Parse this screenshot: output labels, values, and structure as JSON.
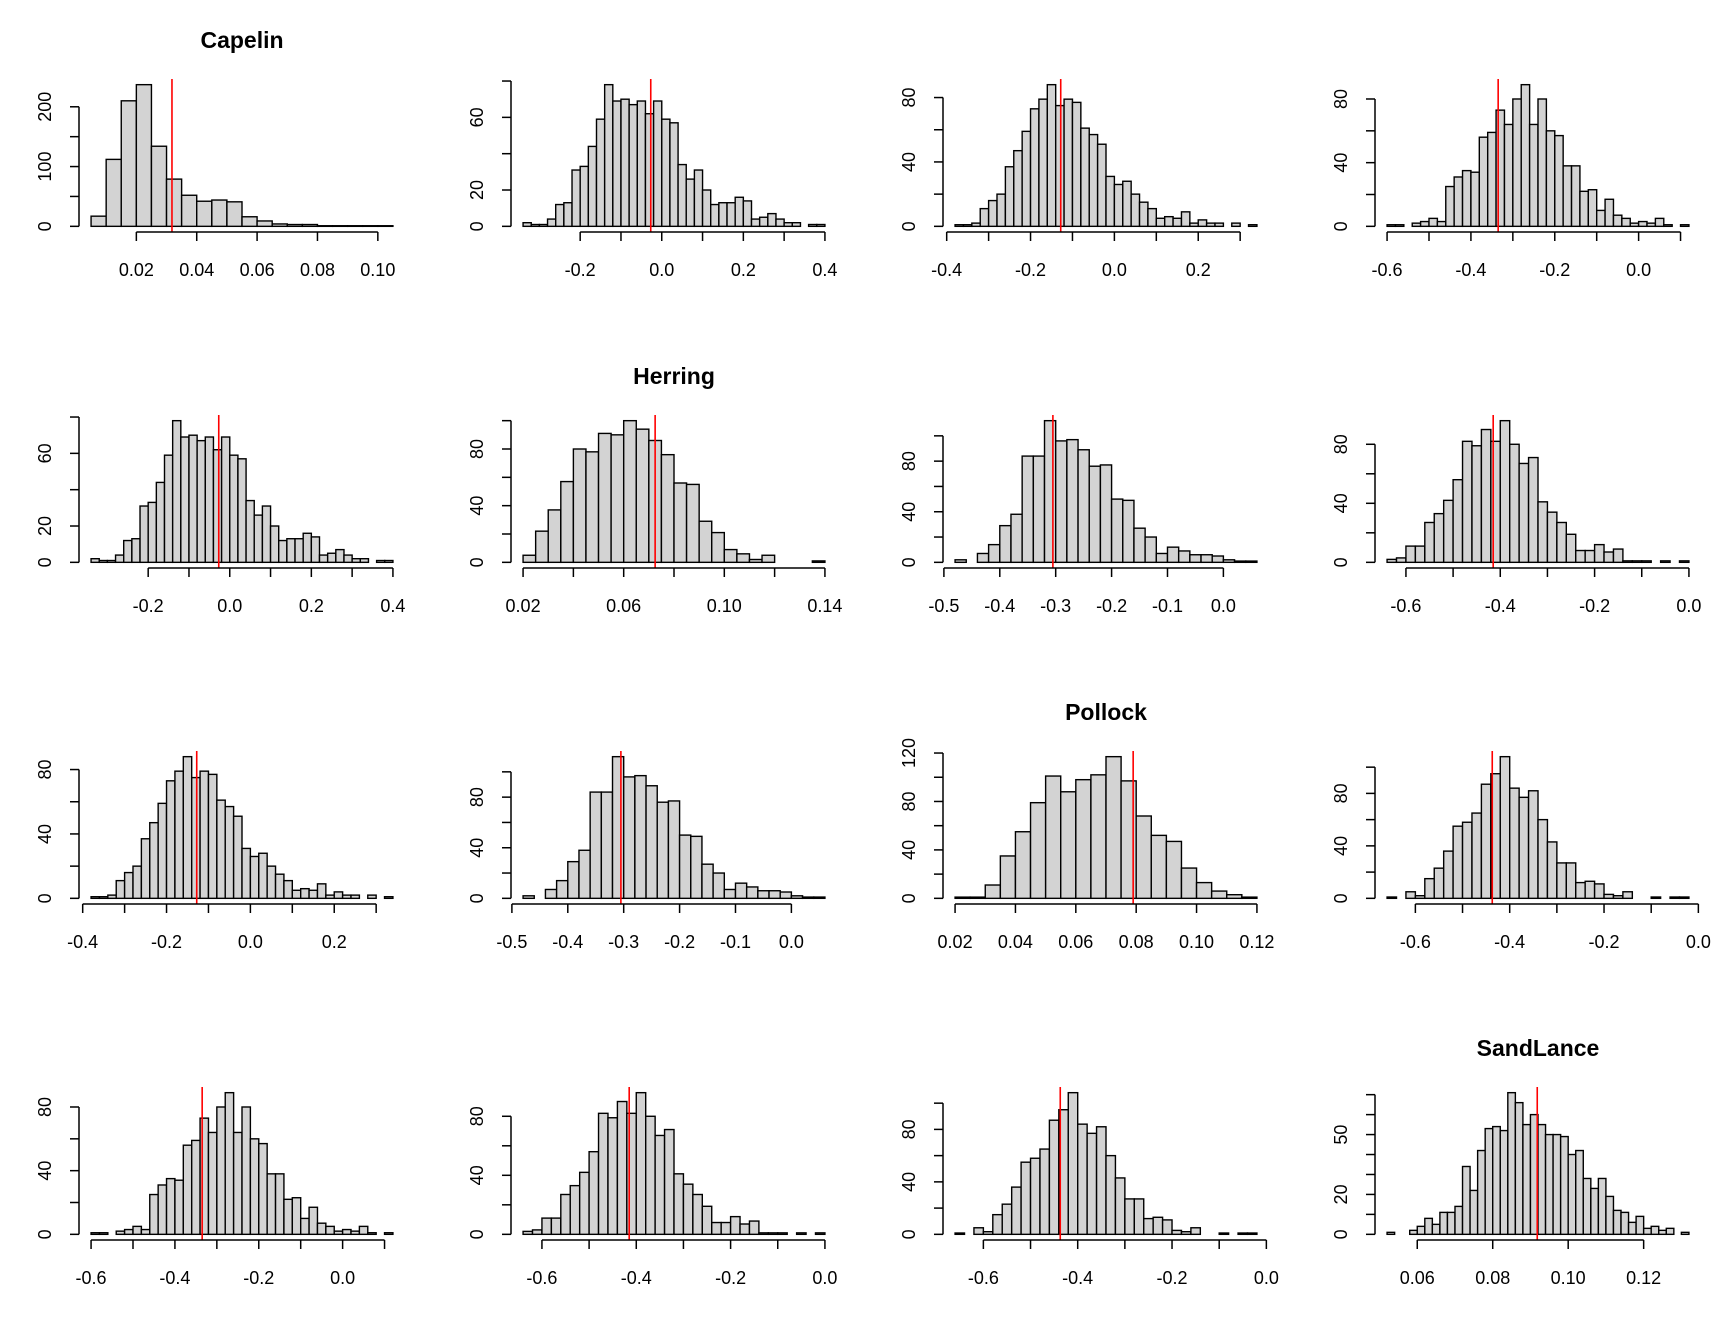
{
  "chart_data": {
    "type": "histogram-grid",
    "bar_fill": "#d3d3d3",
    "ref_line_color": "#ff0000",
    "panels": [
      {
        "title": "Capelin",
        "bins_start": 0.005,
        "bin_width": 0.005,
        "counts": [
          17,
          112,
          210,
          237,
          134,
          79,
          52,
          42,
          44,
          41,
          16,
          9,
          4,
          3,
          3,
          1,
          1,
          1,
          1,
          1
        ],
        "ref_line": 0.0318,
        "x_ticks": [
          0.02,
          0.04,
          0.06,
          0.08,
          0.1
        ],
        "x_labels": [
          "0.02",
          "0.04",
          "0.06",
          "0.08",
          "0.10"
        ],
        "y_ticks": [
          0,
          50,
          100,
          150,
          200
        ],
        "y_labels": [
          "0",
          "",
          "100",
          "",
          "200"
        ]
      },
      {
        "title": "",
        "bins_start": -0.34,
        "bin_width": 0.02,
        "counts": [
          2,
          1,
          1,
          4,
          12,
          13,
          31,
          33,
          44,
          59,
          78,
          69,
          70,
          67,
          69,
          62,
          69,
          59,
          57,
          34,
          26,
          31,
          20,
          12,
          13,
          13,
          16,
          14,
          4,
          5,
          7,
          4,
          2,
          2,
          0,
          1,
          1
        ],
        "ref_line": -0.027,
        "x_ticks": [
          -0.2,
          -0.1,
          0.0,
          0.1,
          0.2,
          0.3,
          0.4
        ],
        "x_labels": [
          "-0.2",
          "",
          "0.0",
          "",
          "0.2",
          "",
          "0.4"
        ],
        "y_ticks": [
          0,
          20,
          40,
          60,
          80
        ],
        "y_labels": [
          "0",
          "20",
          "",
          "60",
          ""
        ]
      },
      {
        "title": "",
        "bins_start": -0.38,
        "bin_width": 0.02,
        "counts": [
          1,
          1,
          2,
          11,
          16,
          20,
          37,
          47,
          59,
          73,
          79,
          88,
          75,
          79,
          77,
          61,
          57,
          51,
          31,
          26,
          28,
          20,
          15,
          11,
          5,
          6,
          5,
          9,
          2,
          4,
          2,
          2,
          0,
          2,
          0,
          1
        ],
        "ref_line": -0.128,
        "x_ticks": [
          -0.4,
          -0.3,
          -0.2,
          -0.1,
          0.0,
          0.1,
          0.2,
          0.3
        ],
        "x_labels": [
          "-0.4",
          "",
          "-0.2",
          "",
          "0.0",
          "",
          "0.2",
          ""
        ],
        "y_ticks": [
          0,
          20,
          40,
          60,
          80
        ],
        "y_labels": [
          "0",
          "",
          "40",
          "",
          "80"
        ]
      },
      {
        "title": "",
        "bins_start": -0.6,
        "bin_width": 0.02,
        "counts": [
          1,
          1,
          0,
          2,
          3,
          5,
          3,
          25,
          31,
          35,
          34,
          56,
          59,
          73,
          64,
          80,
          89,
          64,
          80,
          60,
          57,
          38,
          38,
          22,
          23,
          10,
          17,
          7,
          5,
          2,
          3,
          2,
          5,
          1,
          0,
          1
        ],
        "ref_line": -0.335,
        "x_ticks": [
          -0.6,
          -0.5,
          -0.4,
          -0.3,
          -0.2,
          -0.1,
          0.0,
          0.1
        ],
        "x_labels": [
          "-0.6",
          "",
          "-0.4",
          "",
          "-0.2",
          "",
          "0.0",
          ""
        ],
        "y_ticks": [
          0,
          20,
          40,
          60,
          80
        ],
        "y_labels": [
          "0",
          "",
          "40",
          "",
          "80"
        ]
      },
      {
        "title": "",
        "bins_start": -0.34,
        "bin_width": 0.02,
        "counts": [
          2,
          1,
          1,
          4,
          12,
          13,
          31,
          33,
          44,
          59,
          78,
          69,
          70,
          67,
          69,
          62,
          69,
          59,
          57,
          34,
          26,
          31,
          20,
          12,
          13,
          13,
          16,
          14,
          4,
          5,
          7,
          4,
          2,
          2,
          0,
          1,
          1
        ],
        "ref_line": -0.027,
        "x_ticks": [
          -0.2,
          -0.1,
          0.0,
          0.1,
          0.2,
          0.3,
          0.4
        ],
        "x_labels": [
          "-0.2",
          "",
          "0.0",
          "",
          "0.2",
          "",
          "0.4"
        ],
        "y_ticks": [
          0,
          20,
          40,
          60,
          80
        ],
        "y_labels": [
          "0",
          "20",
          "",
          "60",
          ""
        ]
      },
      {
        "title": "Herring",
        "bins_start": 0.02,
        "bin_width": 0.005,
        "counts": [
          5,
          22,
          37,
          57,
          80,
          78,
          91,
          90,
          100,
          94,
          86,
          76,
          56,
          55,
          29,
          21,
          9,
          6,
          2,
          5,
          0,
          0,
          0,
          1
        ],
        "ref_line": 0.0725,
        "x_ticks": [
          0.02,
          0.04,
          0.06,
          0.08,
          0.1,
          0.12,
          0.14
        ],
        "x_labels": [
          "0.02",
          "",
          "0.06",
          "",
          "0.10",
          "",
          "0.14"
        ],
        "y_ticks": [
          0,
          20,
          40,
          60,
          80,
          100
        ],
        "y_labels": [
          "0",
          "",
          "40",
          "",
          "80",
          ""
        ]
      },
      {
        "title": "",
        "bins_start": -0.48,
        "bin_width": 0.02,
        "counts": [
          2,
          0,
          7,
          14,
          29,
          38,
          84,
          84,
          112,
          96,
          97,
          89,
          76,
          77,
          50,
          49,
          27,
          20,
          7,
          12,
          9,
          6,
          6,
          5,
          2,
          1,
          1
        ],
        "ref_line": -0.305,
        "x_ticks": [
          -0.5,
          -0.4,
          -0.3,
          -0.2,
          -0.1,
          0.0
        ],
        "x_labels": [
          "-0.5",
          "-0.4",
          "-0.3",
          "-0.2",
          "-0.1",
          "0.0"
        ],
        "y_ticks": [
          0,
          20,
          40,
          60,
          80,
          100
        ],
        "y_labels": [
          "0",
          "",
          "40",
          "",
          "80",
          ""
        ]
      },
      {
        "title": "",
        "bins_start": -0.64,
        "bin_width": 0.02,
        "counts": [
          2,
          3,
          11,
          11,
          27,
          33,
          42,
          56,
          82,
          79,
          90,
          82,
          96,
          80,
          67,
          71,
          41,
          34,
          27,
          19,
          8,
          8,
          12,
          7,
          9,
          1,
          1,
          1,
          0,
          1,
          0,
          1
        ],
        "ref_line": -0.415,
        "x_ticks": [
          -0.6,
          -0.5,
          -0.4,
          -0.3,
          -0.2,
          -0.1,
          0.0
        ],
        "x_labels": [
          "-0.6",
          "",
          "-0.4",
          "",
          "-0.2",
          "",
          "0.0"
        ],
        "y_ticks": [
          0,
          20,
          40,
          60,
          80
        ],
        "y_labels": [
          "0",
          "",
          "40",
          "",
          "80"
        ]
      },
      {
        "title": "",
        "bins_start": -0.38,
        "bin_width": 0.02,
        "counts": [
          1,
          1,
          2,
          11,
          16,
          20,
          37,
          47,
          59,
          73,
          79,
          88,
          75,
          79,
          77,
          61,
          57,
          51,
          31,
          26,
          28,
          20,
          15,
          11,
          5,
          6,
          5,
          9,
          2,
          4,
          2,
          2,
          0,
          2,
          0,
          1
        ],
        "ref_line": -0.128,
        "x_ticks": [
          -0.4,
          -0.3,
          -0.2,
          -0.1,
          0.0,
          0.1,
          0.2,
          0.3
        ],
        "x_labels": [
          "-0.4",
          "",
          "-0.2",
          "",
          "0.0",
          "",
          "0.2",
          ""
        ],
        "y_ticks": [
          0,
          20,
          40,
          60,
          80
        ],
        "y_labels": [
          "0",
          "",
          "40",
          "",
          "80"
        ]
      },
      {
        "title": "",
        "bins_start": -0.48,
        "bin_width": 0.02,
        "counts": [
          2,
          0,
          7,
          14,
          29,
          38,
          84,
          84,
          112,
          96,
          97,
          89,
          76,
          77,
          50,
          49,
          27,
          20,
          7,
          12,
          9,
          6,
          6,
          5,
          2,
          1,
          1
        ],
        "ref_line": -0.305,
        "x_ticks": [
          -0.5,
          -0.4,
          -0.3,
          -0.2,
          -0.1,
          0.0
        ],
        "x_labels": [
          "-0.5",
          "-0.4",
          "-0.3",
          "-0.2",
          "-0.1",
          "0.0"
        ],
        "y_ticks": [
          0,
          20,
          40,
          60,
          80,
          100
        ],
        "y_labels": [
          "0",
          "",
          "40",
          "",
          "80",
          ""
        ]
      },
      {
        "title": "Pollock",
        "bins_start": 0.02,
        "bin_width": 0.005,
        "counts": [
          1,
          1,
          11,
          35,
          55,
          79,
          101,
          88,
          98,
          102,
          117,
          97,
          68,
          52,
          47,
          25,
          13,
          6,
          3,
          1
        ],
        "ref_line": 0.079,
        "x_ticks": [
          0.02,
          0.04,
          0.06,
          0.08,
          0.1,
          0.12
        ],
        "x_labels": [
          "0.02",
          "0.04",
          "0.06",
          "0.08",
          "0.10",
          "0.12"
        ],
        "y_ticks": [
          0,
          20,
          40,
          60,
          80,
          100,
          120
        ],
        "y_labels": [
          "0",
          "",
          "40",
          "",
          "80",
          "",
          "120"
        ]
      },
      {
        "title": "",
        "bins_start": -0.66,
        "bin_width": 0.02,
        "counts": [
          1,
          0,
          5,
          2,
          15,
          23,
          36,
          55,
          58,
          65,
          87,
          95,
          108,
          84,
          77,
          82,
          60,
          43,
          27,
          27,
          12,
          13,
          11,
          3,
          2,
          5,
          0,
          0,
          1,
          0,
          1,
          1
        ],
        "ref_line": -0.437,
        "x_ticks": [
          -0.6,
          -0.5,
          -0.4,
          -0.3,
          -0.2,
          -0.1,
          0.0
        ],
        "x_labels": [
          "-0.6",
          "",
          "-0.4",
          "",
          "-0.2",
          "",
          "0.0"
        ],
        "y_ticks": [
          0,
          20,
          40,
          60,
          80,
          100
        ],
        "y_labels": [
          "0",
          "",
          "40",
          "",
          "80",
          ""
        ]
      },
      {
        "title": "",
        "bins_start": -0.6,
        "bin_width": 0.02,
        "counts": [
          1,
          1,
          0,
          2,
          3,
          5,
          3,
          25,
          31,
          35,
          34,
          56,
          59,
          73,
          64,
          80,
          89,
          64,
          80,
          60,
          57,
          38,
          38,
          22,
          23,
          10,
          17,
          7,
          5,
          2,
          3,
          2,
          5,
          1,
          0,
          1
        ],
        "ref_line": -0.335,
        "x_ticks": [
          -0.6,
          -0.5,
          -0.4,
          -0.3,
          -0.2,
          -0.1,
          0.0,
          0.1
        ],
        "x_labels": [
          "-0.6",
          "",
          "-0.4",
          "",
          "-0.2",
          "",
          "0.0",
          ""
        ],
        "y_ticks": [
          0,
          20,
          40,
          60,
          80
        ],
        "y_labels": [
          "0",
          "",
          "40",
          "",
          "80"
        ]
      },
      {
        "title": "",
        "bins_start": -0.64,
        "bin_width": 0.02,
        "counts": [
          2,
          3,
          11,
          11,
          27,
          33,
          42,
          56,
          82,
          79,
          90,
          82,
          96,
          80,
          67,
          71,
          41,
          34,
          27,
          19,
          8,
          8,
          12,
          7,
          9,
          1,
          1,
          1,
          0,
          1,
          0,
          1
        ],
        "ref_line": -0.415,
        "x_ticks": [
          -0.6,
          -0.5,
          -0.4,
          -0.3,
          -0.2,
          -0.1,
          0.0
        ],
        "x_labels": [
          "-0.6",
          "",
          "-0.4",
          "",
          "-0.2",
          "",
          "0.0"
        ],
        "y_ticks": [
          0,
          20,
          40,
          60,
          80
        ],
        "y_labels": [
          "0",
          "",
          "40",
          "",
          "80"
        ]
      },
      {
        "title": "",
        "bins_start": -0.66,
        "bin_width": 0.02,
        "counts": [
          1,
          0,
          5,
          2,
          15,
          23,
          36,
          55,
          58,
          65,
          87,
          95,
          108,
          84,
          77,
          82,
          60,
          43,
          27,
          27,
          12,
          13,
          11,
          3,
          2,
          5,
          0,
          0,
          1,
          0,
          1,
          1
        ],
        "ref_line": -0.437,
        "x_ticks": [
          -0.6,
          -0.5,
          -0.4,
          -0.3,
          -0.2,
          -0.1,
          0.0
        ],
        "x_labels": [
          "-0.6",
          "",
          "-0.4",
          "",
          "-0.2",
          "",
          "0.0"
        ],
        "y_ticks": [
          0,
          20,
          40,
          60,
          80,
          100
        ],
        "y_labels": [
          "0",
          "",
          "40",
          "",
          "80",
          ""
        ]
      },
      {
        "title": "SandLance",
        "bins_start": 0.052,
        "bin_width": 0.002,
        "counts": [
          1,
          0,
          0,
          2,
          4,
          8,
          5,
          11,
          11,
          14,
          34,
          22,
          42,
          53,
          54,
          52,
          71,
          66,
          55,
          60,
          55,
          50,
          50,
          49,
          40,
          42,
          28,
          23,
          28,
          19,
          12,
          11,
          6,
          9,
          3,
          4,
          2,
          3,
          0,
          1
        ],
        "ref_line": 0.0918,
        "x_ticks": [
          0.06,
          0.08,
          0.1,
          0.12
        ],
        "x_labels": [
          "0.06",
          "0.08",
          "0.10",
          "0.12"
        ],
        "y_ticks": [
          0,
          10,
          20,
          30,
          40,
          50,
          60,
          70
        ],
        "y_labels": [
          "0",
          "",
          "20",
          "",
          "",
          "50",
          "",
          ""
        ]
      }
    ]
  }
}
